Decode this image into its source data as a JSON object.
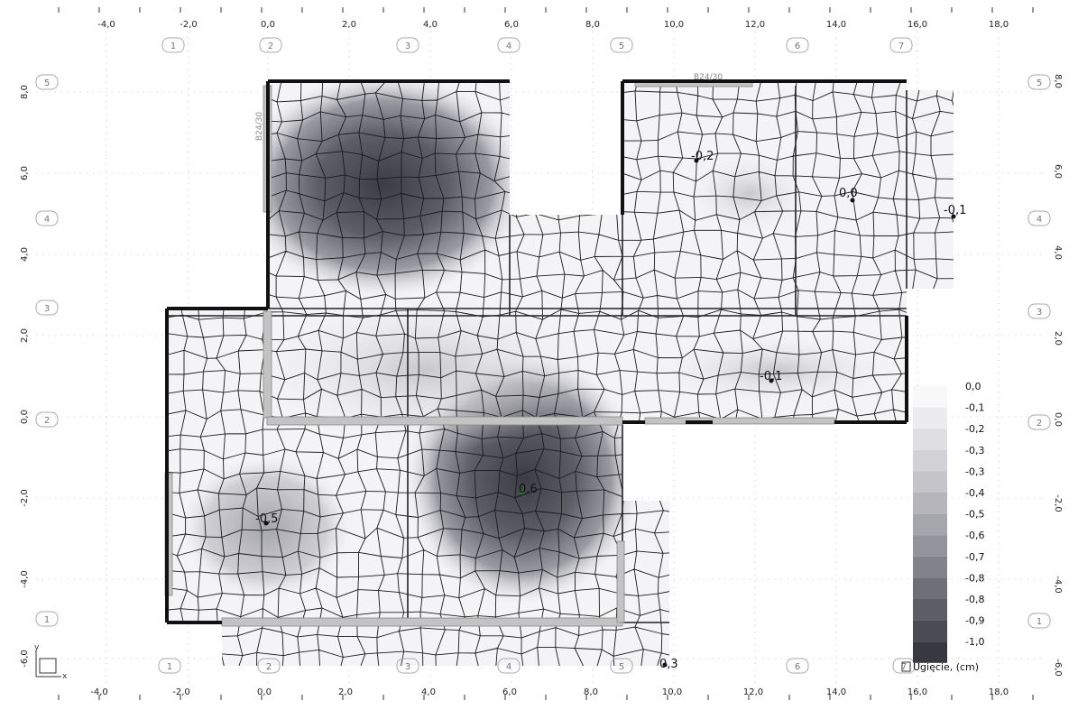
{
  "x_ticks": [
    "-4,0",
    "-2,0",
    "0,0",
    "2,0",
    "4,0",
    "6,0",
    "8,0",
    "10,0",
    "12,0",
    "14,0",
    "16,0",
    "18,0"
  ],
  "y_ticks": [
    "8,0",
    "6,0",
    "4,0",
    "2,0",
    "0,0",
    "-2,0",
    "-4,0",
    "-6,0"
  ],
  "axis_bubbles_x": [
    "1",
    "2",
    "3",
    "4",
    "5",
    "6",
    "7"
  ],
  "axis_bubbles_y": [
    "5",
    "4",
    "3",
    "2",
    "1"
  ],
  "beam_labels": [
    "B24/30",
    "B24/30"
  ],
  "deflection_values": [
    "-0,2",
    "0,0",
    "-0,1",
    "-0,1",
    "0,6",
    "-0,5",
    "0,3"
  ],
  "legend": {
    "values": [
      "0,0",
      "-0,1",
      "-0,2",
      "-0,3",
      "-0,3",
      "-0,4",
      "-0,5",
      "-0,6",
      "-0,7",
      "-0,8",
      "-0,8",
      "-0,9",
      "-1,0"
    ],
    "colors": [
      "#f8f8f8",
      "#ececee",
      "#dfdfe2",
      "#d2d2d6",
      "#c4c4c9",
      "#b5b5bb",
      "#a5a5ac",
      "#93939b",
      "#82828a",
      "#6f6f78",
      "#5d5d66",
      "#4b4b54",
      "#383840"
    ],
    "title": "Ugięcie, (cm)"
  },
  "coordinate_icon": {
    "y": "y",
    "x": "x"
  },
  "colors": {
    "grid": "#9a9a9a",
    "mesh": "#1a1a1a",
    "wall": "#111111",
    "beam": "#b0b0b0",
    "dark_zone": "#3c3c46"
  }
}
